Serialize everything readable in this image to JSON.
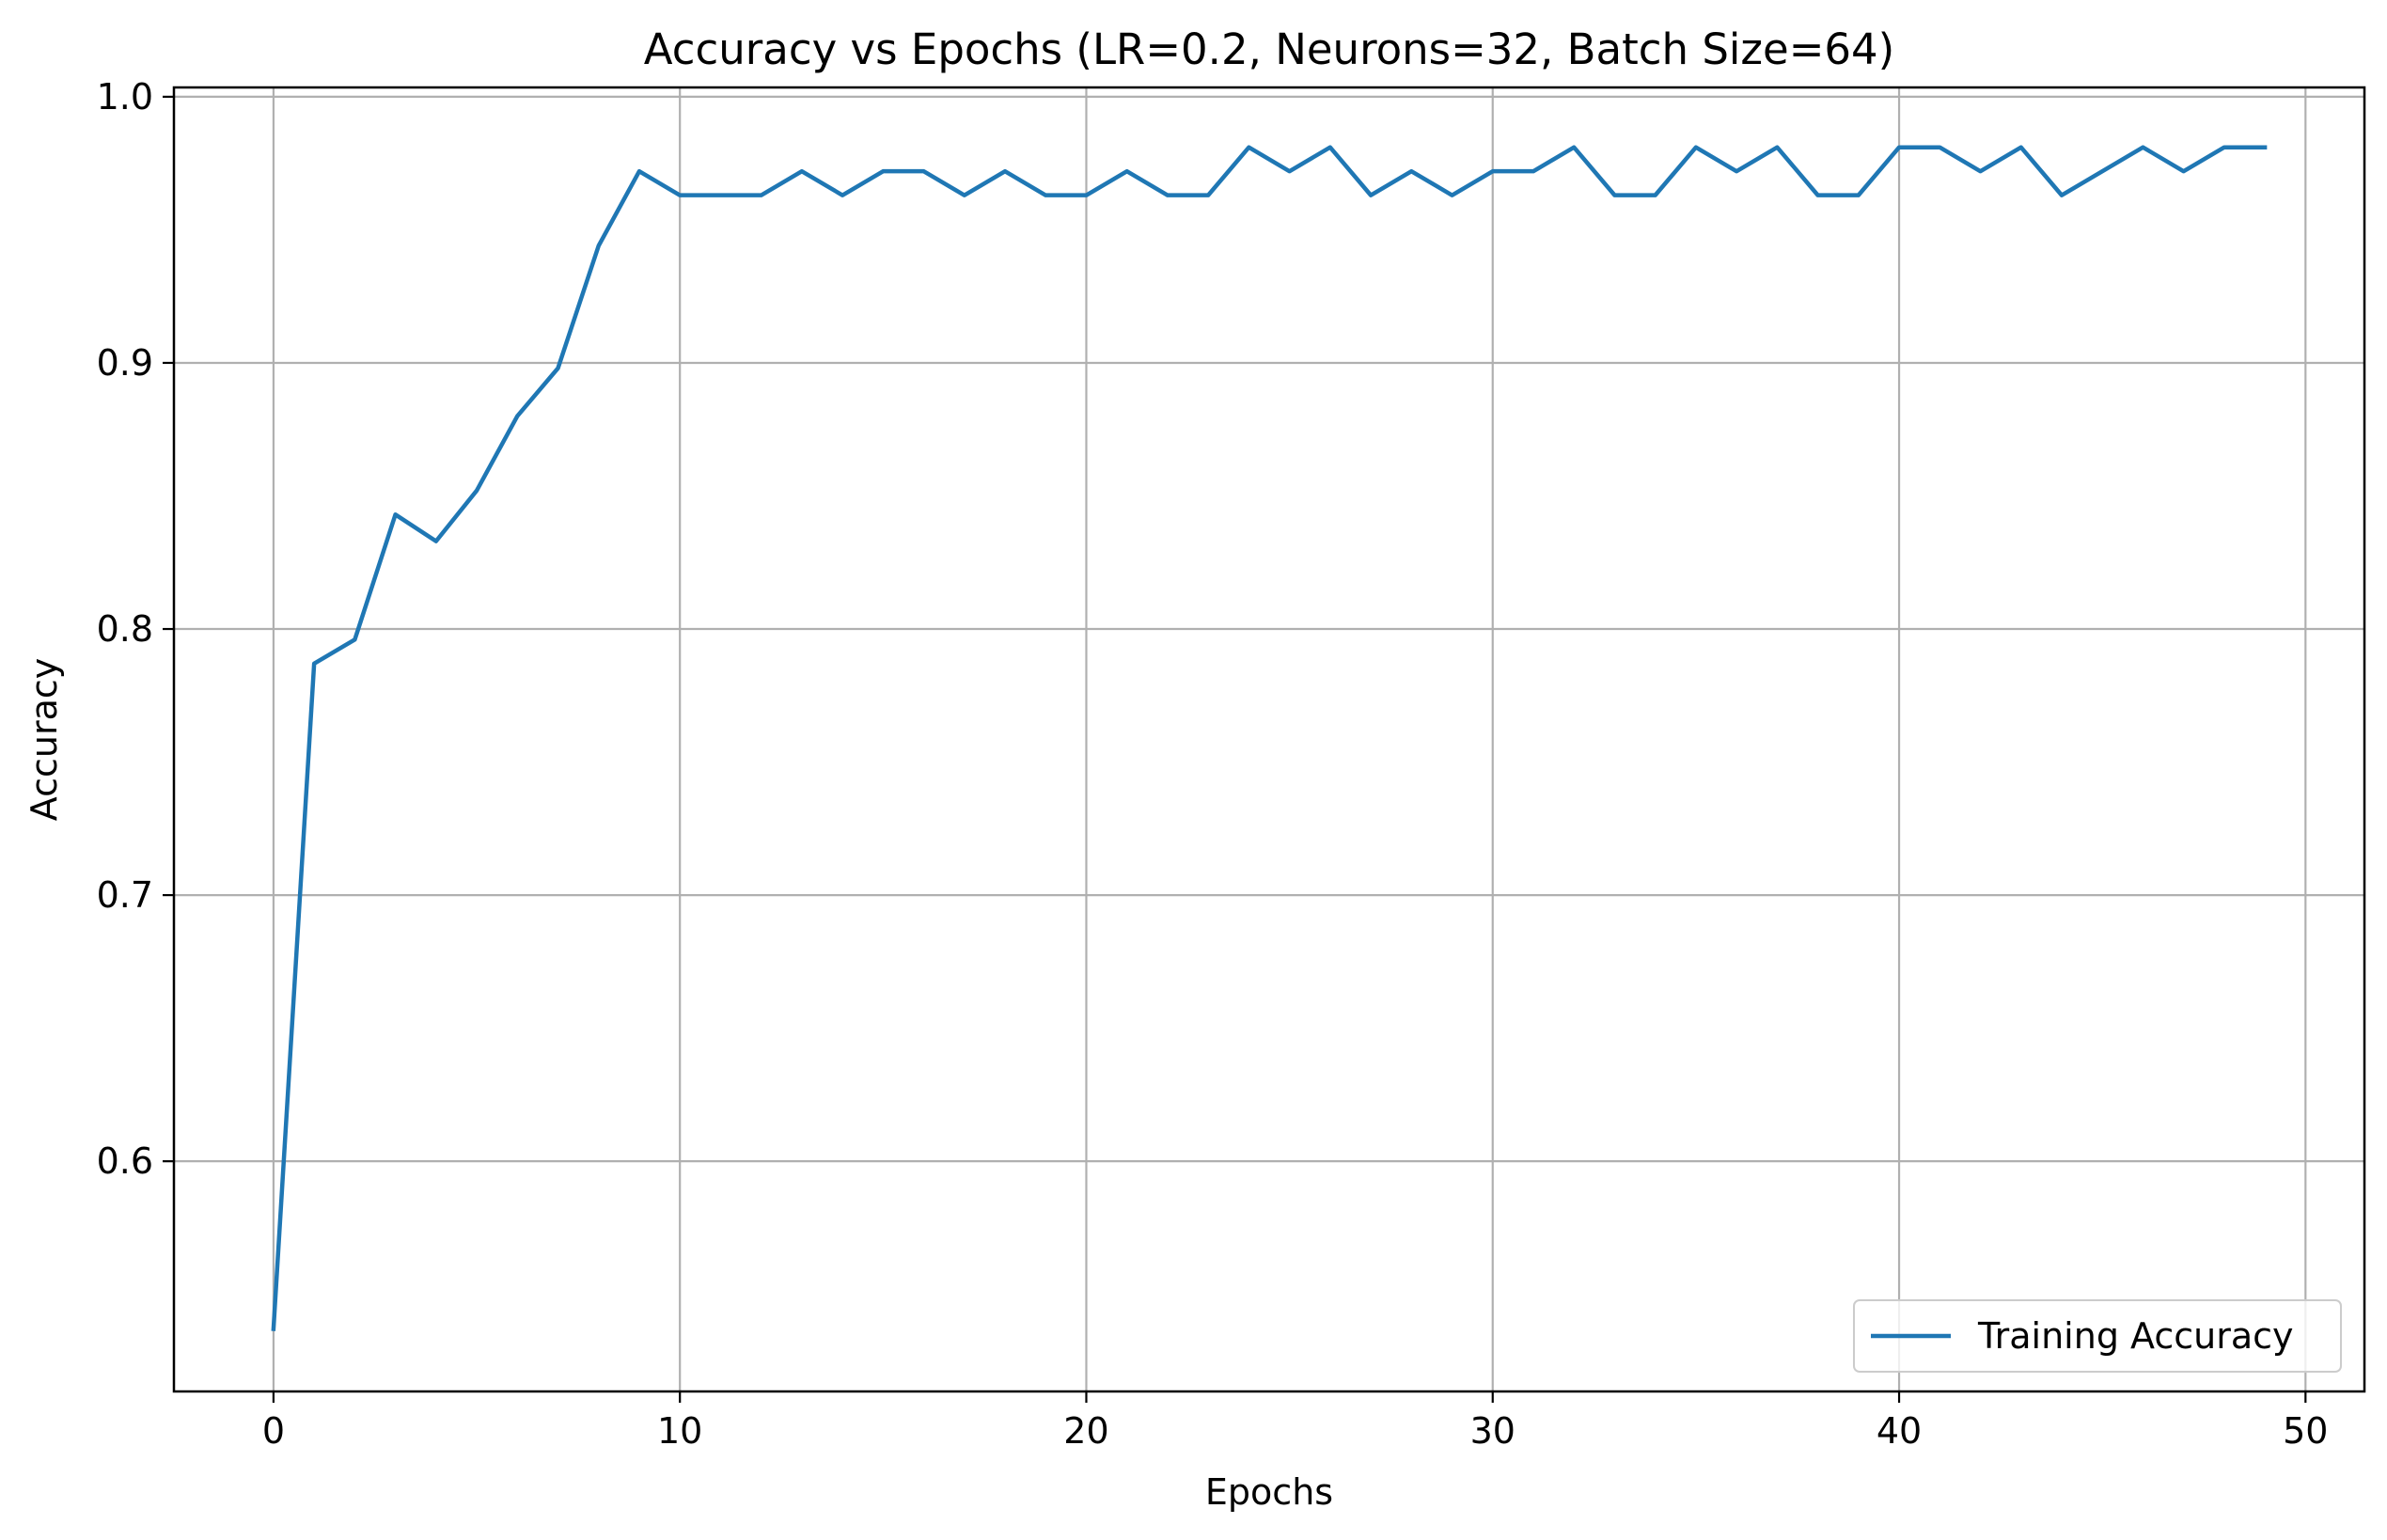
{
  "chart_data": {
    "type": "line",
    "title": "Accuracy vs Epochs (LR=0.2, Neurons=32, Batch Size=64)",
    "xlabel": "Epochs",
    "ylabel": "Accuracy",
    "xlim": [
      -2.45,
      51.45
    ],
    "ylim": [
      0.5135,
      1.0035
    ],
    "xticks": [
      0,
      10,
      20,
      30,
      40,
      50
    ],
    "yticks": [
      0.6,
      0.7,
      0.8,
      0.9,
      1.0
    ],
    "xtick_labels": [
      "0",
      "10",
      "20",
      "30",
      "40",
      "50"
    ],
    "ytick_labels": [
      "0.6",
      "0.7",
      "0.8",
      "0.9",
      "1.0"
    ],
    "grid": true,
    "legend_position": "lower right",
    "series": [
      {
        "name": "Training Accuracy",
        "color": "#1f77b4",
        "x": [
          0,
          1,
          2,
          3,
          4,
          5,
          6,
          7,
          8,
          9,
          10,
          11,
          12,
          13,
          14,
          15,
          16,
          17,
          18,
          19,
          20,
          21,
          22,
          23,
          24,
          25,
          26,
          27,
          28,
          29,
          30,
          31,
          32,
          33,
          34,
          35,
          36,
          37,
          38,
          39,
          40,
          41,
          42,
          43,
          44,
          45,
          46,
          47,
          48,
          49
        ],
        "y": [
          0.537,
          0.787,
          0.796,
          0.843,
          0.833,
          0.852,
          0.88,
          0.898,
          0.944,
          0.972,
          0.963,
          0.963,
          0.963,
          0.972,
          0.963,
          0.972,
          0.972,
          0.963,
          0.972,
          0.963,
          0.963,
          0.972,
          0.963,
          0.963,
          0.981,
          0.972,
          0.981,
          0.963,
          0.972,
          0.963,
          0.972,
          0.972,
          0.981,
          0.963,
          0.963,
          0.981,
          0.972,
          0.981,
          0.963,
          0.963,
          0.981,
          0.981,
          0.972,
          0.981,
          0.963,
          0.972,
          0.981,
          0.972,
          0.981,
          0.981
        ]
      }
    ]
  }
}
